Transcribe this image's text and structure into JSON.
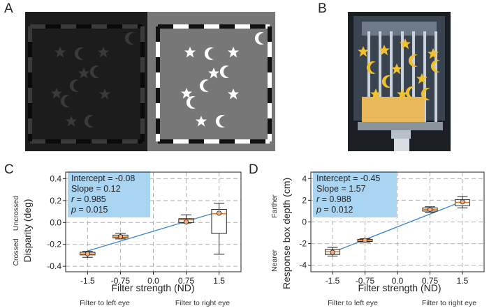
{
  "panels": {
    "A": {
      "label": "A"
    },
    "B": {
      "label": "B"
    },
    "C": {
      "label": "C"
    },
    "D": {
      "label": "D"
    }
  },
  "chart_data": [
    {
      "type": "box",
      "panel": "C",
      "xlabel": "Filter strength (ND)",
      "ylabel": "Disparity (deg)",
      "ylabel_top": "Uncrossed",
      "ylabel_bottom": "Crossed",
      "x_note_left": "Filter to left eye",
      "x_note_right": "Filter to right eye",
      "xticks": [
        "-1.5",
        "-0.75",
        "0.0",
        "0.75",
        "1.5"
      ],
      "xlim": [
        -2.0,
        2.0
      ],
      "yticks": [
        "-0.4",
        "-0.2",
        "0.0",
        "0.2",
        "0.4"
      ],
      "ylim": [
        -0.45,
        0.46
      ],
      "grid": true,
      "boxes": [
        {
          "x": -1.5,
          "q1": -0.296,
          "median": -0.287,
          "q3": -0.272,
          "whisker_low": -0.318,
          "whisker_high": -0.262,
          "mean": -0.286
        },
        {
          "x": -0.75,
          "q1": -0.14,
          "median": -0.133,
          "q3": -0.115,
          "whisker_low": -0.15,
          "whisker_high": -0.1,
          "mean": -0.13
        },
        {
          "x": 0.75,
          "q1": 0.0,
          "median": 0.025,
          "q3": 0.035,
          "whisker_low": -0.005,
          "whisker_high": 0.07,
          "mean": 0.005
        },
        {
          "x": 1.5,
          "q1": -0.1,
          "median": 0.08,
          "q3": 0.12,
          "whisker_low": -0.29,
          "whisker_high": 0.175,
          "mean": 0.085
        }
      ],
      "fit": {
        "intercept": -0.08,
        "slope": 0.12,
        "x_range": [
          -1.5,
          1.5
        ]
      },
      "stats": {
        "intercept_label": "Intercept = -0.08",
        "slope_label": "Slope = 0.12",
        "r_symbol": "r",
        "r_text": " = 0.985",
        "p_symbol": "p",
        "p_text": " = 0.015"
      }
    },
    {
      "type": "box",
      "panel": "D",
      "xlabel": "Filter strength (ND)",
      "ylabel": "Response box depth (cm)",
      "ylabel_top": "Farther",
      "ylabel_bottom": "Nearer",
      "x_note_left": "Filter to left eye",
      "x_note_right": "Filter to right eye",
      "xticks": [
        "-1.5",
        "-0.75",
        "0.0",
        "0.75",
        "1.5"
      ],
      "xlim": [
        -2.0,
        2.0
      ],
      "yticks": [
        "-4",
        "-2",
        "0",
        "2",
        "4"
      ],
      "ylim": [
        -4.6,
        4.6
      ],
      "grid": true,
      "boxes": [
        {
          "x": -1.5,
          "q1": -3.0,
          "median": -2.75,
          "q3": -2.55,
          "whisker_low": -3.15,
          "whisker_high": -2.35,
          "mean": -2.8
        },
        {
          "x": -0.75,
          "q1": -1.8,
          "median": -1.7,
          "q3": -1.6,
          "whisker_low": -1.85,
          "whisker_high": -1.55,
          "mean": -1.7
        },
        {
          "x": 0.75,
          "q1": 1.0,
          "median": 1.15,
          "q3": 1.3,
          "whisker_low": 0.9,
          "whisker_high": 1.4,
          "mean": 1.15
        },
        {
          "x": 1.5,
          "q1": 1.5,
          "median": 1.8,
          "q3": 2.05,
          "whisker_low": 1.3,
          "whisker_high": 2.35,
          "mean": 1.85
        }
      ],
      "fit": {
        "intercept": -0.45,
        "slope": 1.57,
        "x_range": [
          -1.5,
          1.5
        ]
      },
      "stats": {
        "intercept_label": "Intercept = -0.45",
        "slope_label": "Slope = 1.57",
        "r_symbol": "r",
        "r_text": " = 0.988",
        "p_symbol": "p",
        "p_text": " = 0.012"
      }
    }
  ],
  "colors": {
    "box_face": "#ffffff",
    "crossed_face": "#f0a97a",
    "median": "#e07a1f",
    "fit_line": "#3a86d6",
    "stats_box": "#a9d4f2",
    "grid": "#b0b0b0"
  }
}
